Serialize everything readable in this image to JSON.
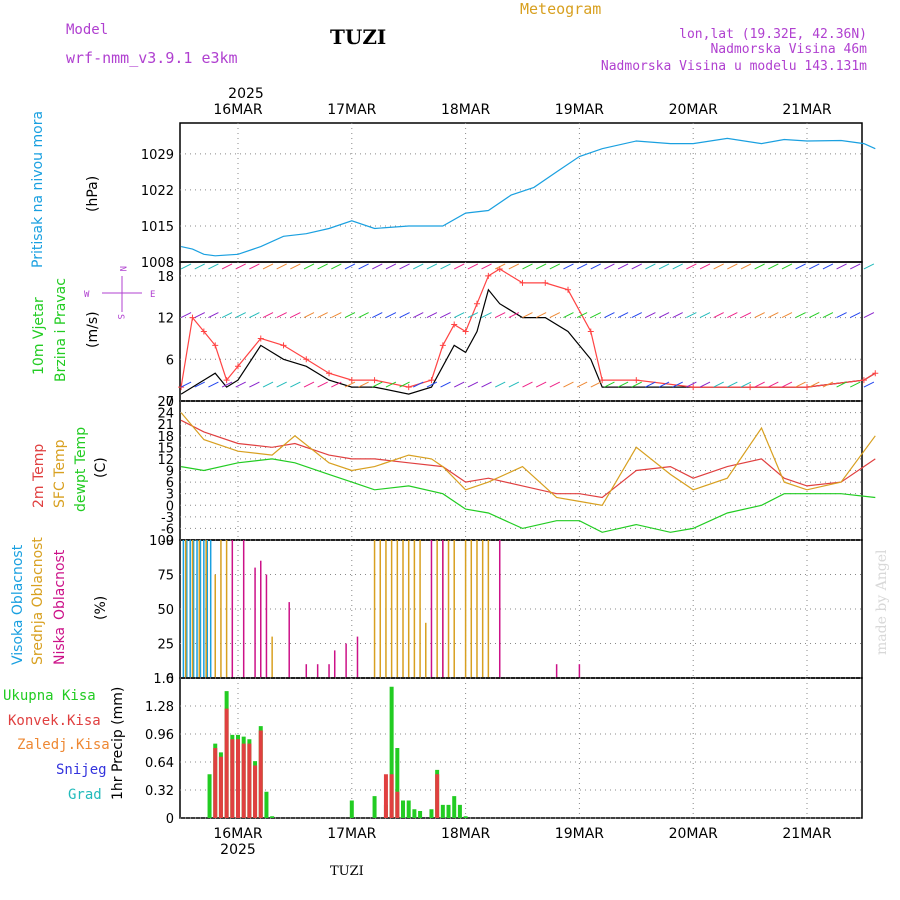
{
  "header": {
    "station": "TUZI",
    "model_label": "Model",
    "model_name": "wrf-nmm_v3.9.1 e3km",
    "meteogram": "Meteogram",
    "lonlat": "lon,lat (19.32E, 42.36N)",
    "elevation": "Nadmorska Visina 46m",
    "model_elevation": "Nadmorska Visina u modelu 143.131m",
    "year_top": "2025",
    "year_bottom": "2025",
    "footer_station": "TUZI",
    "credit": "made by Angel"
  },
  "colors": {
    "pressure": "#1aa0e0",
    "wind_title": "#22cc22",
    "temp2m": "#e04040",
    "sfc": "#d8a020",
    "dewpt": "#22cc22",
    "cloud_high": "#1aa0e0",
    "cloud_mid": "#d8a020",
    "cloud_low": "#cc1188",
    "precip_total": "#22cc22",
    "precip_conv": "#e04040",
    "precip_frozen": "#ee8833",
    "snow": "#3333dd",
    "graupel": "#22bbbb"
  },
  "days": [
    "16MAR",
    "17MAR",
    "18MAR",
    "19MAR",
    "20MAR",
    "21MAR"
  ],
  "chart_data": [
    {
      "type": "line",
      "title": "Pritisak na nivou mora",
      "ylabel": "(hPa)",
      "ylim": [
        1008,
        1035
      ],
      "yticks": [
        1008,
        1015,
        1022,
        1029
      ],
      "series": [
        {
          "name": "MSLP",
          "x_days": [
            -0.5,
            -0.4,
            -0.3,
            -0.2,
            0,
            0.2,
            0.4,
            0.6,
            0.8,
            1.0,
            1.2,
            1.5,
            1.8,
            2.0,
            2.2,
            2.4,
            2.6,
            2.8,
            3.0,
            3.2,
            3.5,
            3.8,
            4.0,
            4.3,
            4.6,
            4.8,
            5.0,
            5.3,
            5.5,
            5.6
          ],
          "values": [
            1011,
            1010.5,
            1009.5,
            1009.2,
            1009.5,
            1011,
            1013,
            1013.5,
            1014.5,
            1016,
            1014.5,
            1015,
            1015,
            1017.5,
            1018,
            1021,
            1022.5,
            1025.5,
            1028.5,
            1030,
            1031.5,
            1031,
            1031,
            1032,
            1031,
            1031.8,
            1031.5,
            1031.6,
            1031,
            1030
          ]
        }
      ]
    },
    {
      "type": "line",
      "title": "10m Vjetar Brzina i Pravac",
      "ylabel": "(m/s)",
      "ylim": [
        0,
        20
      ],
      "yticks": [
        0,
        6,
        12,
        18
      ],
      "series": [
        {
          "name": "speed",
          "x_days": [
            -0.5,
            -0.4,
            -0.3,
            -0.2,
            -0.1,
            0,
            0.2,
            0.4,
            0.6,
            0.8,
            1.0,
            1.2,
            1.5,
            1.7,
            1.8,
            1.9,
            2.0,
            2.1,
            2.2,
            2.3,
            2.5,
            2.7,
            2.9,
            3.1,
            3.2,
            3.5,
            4.0,
            4.5,
            5.0,
            5.5,
            5.6
          ],
          "values": [
            1,
            2,
            3,
            4,
            2,
            3,
            8,
            6,
            5,
            3,
            2,
            2,
            1,
            2,
            5,
            8,
            7,
            10,
            16,
            14,
            12,
            12,
            10,
            6,
            2,
            2,
            2,
            2,
            2,
            3,
            4
          ]
        },
        {
          "name": "gust",
          "x_days": [
            -0.5,
            -0.4,
            -0.3,
            -0.2,
            -0.1,
            0,
            0.2,
            0.4,
            0.6,
            0.8,
            1.0,
            1.2,
            1.5,
            1.7,
            1.8,
            1.9,
            2.0,
            2.1,
            2.2,
            2.3,
            2.5,
            2.7,
            2.9,
            3.1,
            3.2,
            3.5,
            4.0,
            4.5,
            5.0,
            5.5,
            5.6
          ],
          "values": [
            2,
            12,
            10,
            8,
            3,
            5,
            9,
            8,
            6,
            4,
            3,
            3,
            2,
            3,
            8,
            11,
            10,
            14,
            18,
            19,
            17,
            17,
            16,
            10,
            3,
            3,
            2,
            2,
            2,
            3,
            4
          ]
        }
      ]
    },
    {
      "type": "line",
      "title": "2m Temp / SFC Temp / dewpt Temp",
      "ylabel": "(C)",
      "ylim": [
        -9,
        27
      ],
      "yticks": [
        -9,
        -6,
        -3,
        0,
        3,
        6,
        9,
        12,
        15,
        18,
        21,
        24,
        27
      ],
      "series": [
        {
          "name": "2m Temp",
          "x_days": [
            -0.5,
            -0.3,
            0,
            0.3,
            0.5,
            0.8,
            1.0,
            1.2,
            1.5,
            1.8,
            2.0,
            2.2,
            2.5,
            2.8,
            3.0,
            3.2,
            3.5,
            3.8,
            4.0,
            4.3,
            4.6,
            4.8,
            5.0,
            5.3,
            5.6
          ],
          "values": [
            22,
            19,
            16,
            15,
            16,
            13,
            12,
            12,
            11,
            10,
            6,
            7,
            5,
            3,
            3,
            2,
            9,
            10,
            7,
            10,
            12,
            7,
            5,
            6,
            12
          ]
        },
        {
          "name": "SFC Temp",
          "x_days": [
            -0.5,
            -0.3,
            0,
            0.3,
            0.5,
            0.8,
            1.0,
            1.2,
            1.5,
            1.7,
            1.8,
            2.0,
            2.2,
            2.5,
            2.8,
            3.0,
            3.2,
            3.5,
            3.8,
            4.0,
            4.3,
            4.6,
            4.8,
            5.0,
            5.3,
            5.6
          ],
          "values": [
            24,
            17,
            14,
            13,
            18,
            11,
            9,
            10,
            13,
            12,
            10,
            4,
            6,
            10,
            2,
            1,
            0,
            15,
            8,
            4,
            7,
            20,
            6,
            4,
            6,
            18
          ]
        },
        {
          "name": "dewpt Temp",
          "x_days": [
            -0.5,
            -0.3,
            0,
            0.3,
            0.5,
            0.8,
            1.0,
            1.2,
            1.5,
            1.8,
            2.0,
            2.2,
            2.5,
            2.8,
            3.0,
            3.2,
            3.5,
            3.8,
            4.0,
            4.3,
            4.6,
            4.8,
            5.0,
            5.3,
            5.6
          ],
          "values": [
            10,
            9,
            11,
            12,
            11,
            8,
            6,
            4,
            5,
            3,
            -1,
            -2,
            -6,
            -4,
            -4,
            -7,
            -5,
            -7,
            -6,
            -2,
            0,
            3,
            3,
            3,
            2
          ]
        }
      ]
    },
    {
      "type": "bar",
      "title": "Visoka / Srednja / Niska Oblacnost",
      "ylabel": "(%)",
      "ylim": [
        0,
        100
      ],
      "yticks": [
        0,
        25,
        50,
        75,
        100
      ],
      "series": [
        {
          "name": "Visoka Oblacnost",
          "x_days": [
            -0.48,
            -0.45,
            -0.42,
            -0.39,
            -0.36,
            -0.33,
            -0.3,
            -0.27,
            -0.24
          ],
          "values": [
            100,
            100,
            100,
            100,
            100,
            100,
            100,
            100,
            100
          ]
        },
        {
          "name": "Srednja Oblacnost",
          "x_days": [
            -0.46,
            -0.4,
            -0.34,
            -0.28,
            -0.2,
            -0.15,
            -0.1,
            0.3,
            1.2,
            1.25,
            1.3,
            1.35,
            1.4,
            1.45,
            1.5,
            1.55,
            1.6,
            1.65,
            1.75,
            1.8,
            1.85,
            1.9,
            2.0,
            2.05,
            2.1,
            2.15,
            2.2
          ],
          "values": [
            100,
            100,
            100,
            100,
            75,
            100,
            100,
            30,
            100,
            100,
            100,
            100,
            100,
            100,
            100,
            100,
            100,
            40,
            100,
            100,
            100,
            100,
            100,
            100,
            100,
            100,
            100
          ]
        },
        {
          "name": "Niska Oblacnost",
          "x_days": [
            -0.05,
            0.05,
            0.15,
            0.2,
            0.25,
            0.45,
            0.6,
            0.7,
            0.8,
            0.85,
            0.95,
            1.05,
            1.7,
            1.8,
            2.3,
            2.8,
            3.0
          ],
          "values": [
            100,
            100,
            80,
            85,
            75,
            55,
            10,
            10,
            10,
            20,
            25,
            30,
            100,
            100,
            100,
            10,
            10
          ]
        }
      ]
    },
    {
      "type": "bar",
      "title": "Precipitation",
      "ylabel": "1hr Precip (mm)",
      "ylim": [
        0,
        1.6
      ],
      "yticks": [
        0,
        0.32,
        0.64,
        0.96,
        1.28,
        1.6
      ],
      "series": [
        {
          "name": "Ukupna Kisa",
          "x_days": [
            -0.25,
            -0.2,
            -0.15,
            -0.1,
            -0.05,
            0,
            0.05,
            0.1,
            0.15,
            0.2,
            0.25,
            0.3,
            1.0,
            1.2,
            1.3,
            1.35,
            1.4,
            1.45,
            1.5,
            1.55,
            1.6,
            1.7,
            1.75,
            1.8,
            1.85,
            1.9,
            1.95,
            2.0
          ],
          "values": [
            0.5,
            0.85,
            0.75,
            1.45,
            0.95,
            0.95,
            0.93,
            0.9,
            0.65,
            1.05,
            0.3,
            0.02,
            0.2,
            0.25,
            0.15,
            1.5,
            0.8,
            0.2,
            0.2,
            0.1,
            0.08,
            0.1,
            0.55,
            0.15,
            0.15,
            0.25,
            0.15,
            0.02
          ]
        },
        {
          "name": "Konvek.Kisa",
          "x_days": [
            -0.2,
            -0.15,
            -0.1,
            -0.05,
            0,
            0.05,
            0.1,
            0.15,
            0.2,
            1.3,
            1.35,
            1.4,
            1.75
          ],
          "values": [
            0.8,
            0.7,
            1.25,
            0.9,
            0.9,
            0.85,
            0.85,
            0.6,
            1.0,
            0.5,
            0.5,
            0.3,
            0.5
          ]
        }
      ]
    }
  ],
  "panels": {
    "pressure_label": "Pritisak na nivou mora",
    "pressure_unit": "(hPa)",
    "wind_label1": "10m Vjetar",
    "wind_label2": "Brzina i Pravac",
    "wind_unit": "(m/s)",
    "compass_n": "N",
    "compass_e": "E",
    "compass_w": "W",
    "compass_s": "S",
    "temp_label1": "2m Temp",
    "temp_label2": "SFC Temp",
    "temp_label3": "dewpt Temp",
    "temp_unit": "(C)",
    "cloud_label1": "Visoka Oblacnost",
    "cloud_label2": "Srednja Oblacnost",
    "cloud_label3": "Niska",
    "cloud_label3b": "Oblacnost",
    "cloud_unit": "(%)",
    "precip_unit": "1hr Precip (mm)",
    "legend_total": "Ukupna Kisa",
    "legend_conv": "Konvek.Kisa",
    "legend_frozen": "Zaledj.Kisa",
    "legend_snow": "Snijeg",
    "legend_graupel": "Grad"
  }
}
